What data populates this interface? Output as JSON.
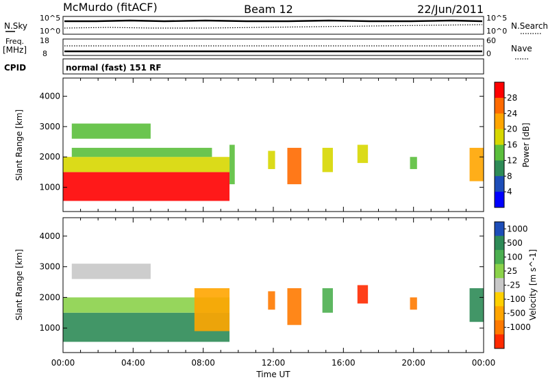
{
  "header": {
    "station": "McMurdo (fitACF)",
    "beam": "Beam 12",
    "date": "22/Jun/2011"
  },
  "top_panels": {
    "nsky_label": "N.Sky",
    "nsky_ticks": [
      "10^5",
      "10^0"
    ],
    "nsearch_label": "N.Search",
    "nsearch_ticks": [
      "10^5",
      "10^0"
    ],
    "freq_label": "Freq.",
    "freq_unit": "[MHz]",
    "freq_ticks": [
      "18",
      "8"
    ],
    "nave_label": "Nave",
    "nave_ticks": [
      "60",
      "0"
    ],
    "cpid_label": "CPID",
    "cpid_text": "normal (fast) 151 RF"
  },
  "colors": {
    "power": [
      "#0000ff",
      "#1d4db8",
      "#2e8b57",
      "#5bbf3c",
      "#d7d700",
      "#ffa500",
      "#ff6a00",
      "#ff0000"
    ],
    "velocity": [
      "#1d4db8",
      "#2e8b57",
      "#4caf50",
      "#8bd24a",
      "#c8c8c8",
      "#ffd000",
      "#ffa500",
      "#ff7a00",
      "#ff2a00"
    ]
  },
  "chart_data": [
    {
      "type": "heatmap",
      "quantity": "Power",
      "xlabel": "",
      "ylabel": "Slant Range [km]",
      "x_range_hours": [
        0,
        24
      ],
      "ylim": [
        200,
        4600
      ],
      "y_ticks": [
        1000,
        2000,
        3000,
        4000
      ],
      "colorbar_label": "Power [dB]",
      "colorbar_ticks": [
        "4",
        "8",
        "12",
        "16",
        "20",
        "24",
        "28"
      ],
      "colorbar_range": [
        0,
        32
      ],
      "echo_regions": [
        {
          "t0": 0.0,
          "t1": 9.5,
          "r0": 550,
          "r1": 1500,
          "level": 7
        },
        {
          "t0": 0.0,
          "t1": 9.5,
          "r0": 1500,
          "r1": 2000,
          "level": 4
        },
        {
          "t0": 0.5,
          "t1": 8.5,
          "r0": 2000,
          "r1": 2300,
          "level": 3
        },
        {
          "t0": 0.5,
          "t1": 5.0,
          "r0": 2600,
          "r1": 3100,
          "level": 3
        },
        {
          "t0": 9.5,
          "t1": 9.8,
          "r0": 1100,
          "r1": 2400,
          "level": 3
        },
        {
          "t0": 11.7,
          "t1": 12.1,
          "r0": 1600,
          "r1": 2200,
          "level": 4
        },
        {
          "t0": 12.8,
          "t1": 13.6,
          "r0": 1100,
          "r1": 2300,
          "level": 6
        },
        {
          "t0": 14.8,
          "t1": 15.4,
          "r0": 1500,
          "r1": 2300,
          "level": 4
        },
        {
          "t0": 16.8,
          "t1": 17.4,
          "r0": 1800,
          "r1": 2400,
          "level": 4
        },
        {
          "t0": 19.8,
          "t1": 20.2,
          "r0": 1600,
          "r1": 2000,
          "level": 3
        },
        {
          "t0": 23.2,
          "t1": 24.0,
          "r0": 1200,
          "r1": 2300,
          "level": 5
        }
      ]
    },
    {
      "type": "heatmap",
      "quantity": "Velocity",
      "xlabel": "Time UT",
      "ylabel": "Slant Range [km]",
      "x_range_hours": [
        0,
        24
      ],
      "x_ticks": [
        "00:00",
        "04:00",
        "08:00",
        "12:00",
        "16:00",
        "20:00",
        "00:00"
      ],
      "ylim": [
        200,
        4600
      ],
      "y_ticks": [
        1000,
        2000,
        3000,
        4000
      ],
      "colorbar_label": "Velocity [m s^-1]",
      "colorbar_ticks": [
        "1000",
        "500",
        "100",
        "25",
        "-25",
        "-100",
        "-500",
        "-1000"
      ],
      "colorbar_range": [
        -1000,
        1000
      ],
      "echo_regions": [
        {
          "t0": 0.0,
          "t1": 9.5,
          "r0": 550,
          "r1": 1500,
          "level": 1
        },
        {
          "t0": 0.0,
          "t1": 9.5,
          "r0": 1500,
          "r1": 2000,
          "level": 3
        },
        {
          "t0": 7.5,
          "t1": 9.5,
          "r0": 900,
          "r1": 2300,
          "level": 6
        },
        {
          "t0": 0.5,
          "t1": 5.0,
          "r0": 2600,
          "r1": 3100,
          "level": 4
        },
        {
          "t0": 11.7,
          "t1": 12.1,
          "r0": 1600,
          "r1": 2200,
          "level": 7
        },
        {
          "t0": 12.8,
          "t1": 13.6,
          "r0": 1100,
          "r1": 2300,
          "level": 7
        },
        {
          "t0": 14.8,
          "t1": 15.4,
          "r0": 1500,
          "r1": 2300,
          "level": 2
        },
        {
          "t0": 16.8,
          "t1": 17.4,
          "r0": 1800,
          "r1": 2400,
          "level": 8
        },
        {
          "t0": 19.8,
          "t1": 20.2,
          "r0": 1600,
          "r1": 2000,
          "level": 7
        },
        {
          "t0": 23.2,
          "t1": 24.0,
          "r0": 1200,
          "r1": 2300,
          "level": 1
        }
      ]
    }
  ]
}
